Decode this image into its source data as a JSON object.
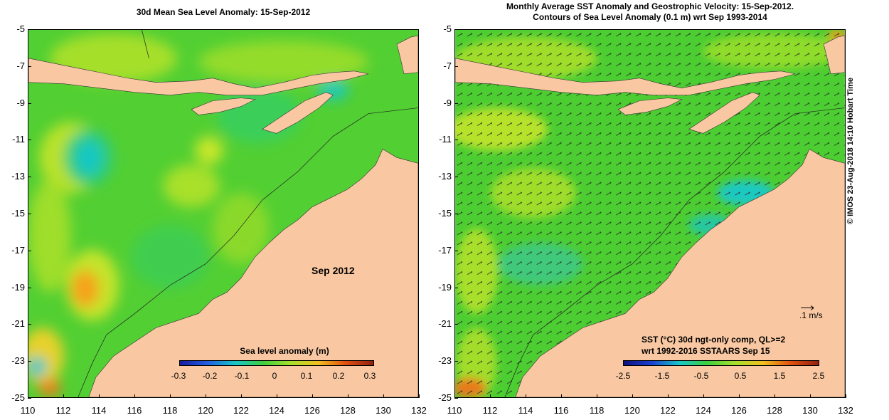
{
  "left_panel": {
    "title": "30d Mean Sea Level Anomaly: 15-Sep-2012",
    "overlay_label": "Sep 2012",
    "colorbar": {
      "title": "Sea level anomaly (m)",
      "ticks": [
        "-0.3",
        "-0.2",
        "-0.1",
        "0",
        "0.1",
        "0.2",
        "0.3"
      ]
    }
  },
  "right_panel": {
    "title_line1": "Monthly Average SST Anomaly  and Geostrophic Velocity: 15-Sep-2012.",
    "title_line2": "Contours of Sea Level Anomaly (0.1 m) wrt Sep 1993-2014",
    "velocity_scale_label": ".1 m/s",
    "sst_note_line1": "SST (°C) 30d ngt-only comp, QL>=2",
    "sst_note_line2": "wrt 1992-2016 SSTAARS Sep 15",
    "colorbar": {
      "ticks": [
        "-2.5",
        "-1.5",
        "-0.5",
        "0.5",
        "1.5",
        "2.5"
      ]
    }
  },
  "axes": {
    "lat_ticks": [
      "-5",
      "-7",
      "-9",
      "-11",
      "-13",
      "-15",
      "-17",
      "-19",
      "-21",
      "-23",
      "-25"
    ],
    "lon_ticks": [
      "110",
      "112",
      "114",
      "116",
      "118",
      "120",
      "122",
      "124",
      "126",
      "128",
      "130",
      "132"
    ]
  },
  "credit": "© IMOS 23-Aug-2018 14:10 Hobart Time",
  "colors": {
    "land": "#f9c8a2",
    "ocean_mid": "#4fcf2c",
    "ocean_light": "#a5e02b",
    "cyan": "#18c6c9",
    "orange": "#f59d1c"
  }
}
